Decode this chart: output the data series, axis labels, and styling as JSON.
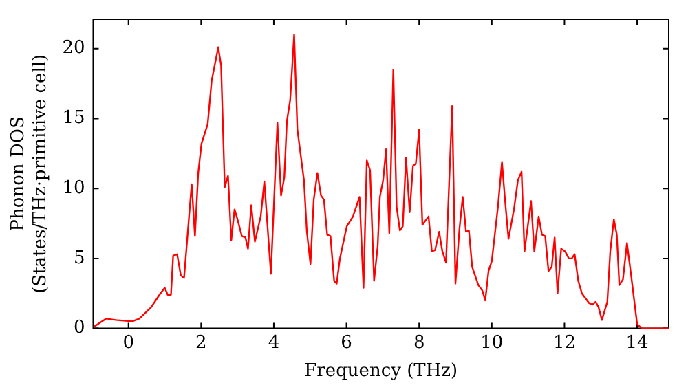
{
  "chart_data": {
    "type": "line",
    "xlabel": "Frequency (THz)",
    "ylabel": "Phonon DOS\n(States/THz·primitive cell)",
    "x": [
      -0.96,
      -0.61,
      -0.35,
      0.1,
      0.3,
      0.62,
      0.88,
      1.0,
      1.08,
      1.17,
      1.23,
      1.34,
      1.44,
      1.53,
      1.74,
      1.83,
      1.92,
      2.01,
      2.18,
      2.29,
      2.47,
      2.55,
      2.65,
      2.74,
      2.83,
      2.92,
      3.0,
      3.12,
      3.22,
      3.29,
      3.38,
      3.48,
      3.64,
      3.74,
      3.92,
      4.1,
      4.2,
      4.29,
      4.36,
      4.45,
      4.56,
      4.65,
      4.83,
      4.91,
      5.01,
      5.1,
      5.2,
      5.3,
      5.38,
      5.47,
      5.56,
      5.66,
      5.73,
      5.82,
      6.01,
      6.18,
      6.36,
      6.47,
      6.56,
      6.65,
      6.76,
      6.86,
      6.92,
      7.01,
      7.09,
      7.18,
      7.29,
      7.38,
      7.47,
      7.55,
      7.64,
      7.74,
      7.83,
      7.91,
      8.0,
      8.09,
      8.26,
      8.35,
      8.44,
      8.55,
      8.64,
      8.74,
      8.91,
      9.0,
      9.11,
      9.2,
      9.29,
      9.37,
      9.46,
      9.63,
      9.74,
      9.82,
      9.91,
      10.0,
      10.17,
      10.28,
      10.37,
      10.46,
      10.61,
      10.72,
      10.82,
      10.9,
      10.99,
      11.08,
      11.17,
      11.29,
      11.38,
      11.47,
      11.56,
      11.65,
      11.73,
      11.81,
      11.91,
      12.02,
      12.12,
      12.2,
      12.28,
      12.38,
      12.48,
      12.68,
      12.77,
      12.86,
      12.94,
      13.03,
      13.18,
      13.26,
      13.36,
      13.44,
      13.51,
      13.61,
      13.72,
      13.83,
      14.0,
      14.13,
      14.87
    ],
    "series": [
      {
        "color": "#ff0000",
        "values": [
          0.1,
          0.7,
          0.6,
          0.5,
          0.7,
          1.5,
          2.5,
          2.9,
          2.4,
          2.4,
          5.2,
          5.3,
          3.8,
          3.6,
          10.3,
          6.6,
          11.1,
          13.2,
          14.6,
          17.7,
          20.1,
          18.8,
          10.1,
          10.9,
          6.3,
          8.5,
          7.8,
          6.6,
          6.5,
          5.7,
          8.8,
          6.2,
          8.0,
          10.5,
          3.9,
          14.7,
          9.5,
          10.8,
          14.8,
          16.3,
          21.0,
          14.2,
          10.6,
          6.9,
          4.6,
          9.2,
          11.1,
          9.5,
          9.2,
          6.7,
          6.6,
          3.4,
          3.2,
          5.0,
          7.3,
          8.0,
          9.4,
          2.9,
          12.0,
          11.3,
          3.4,
          5.9,
          9.4,
          10.6,
          12.8,
          6.8,
          18.5,
          8.7,
          7.0,
          7.3,
          12.2,
          8.3,
          11.6,
          11.8,
          14.2,
          7.4,
          8.0,
          5.5,
          5.6,
          6.9,
          5.5,
          4.7,
          15.9,
          3.2,
          7.1,
          9.4,
          6.9,
          7.0,
          4.4,
          3.1,
          2.7,
          2.0,
          4.1,
          4.8,
          8.7,
          11.9,
          9.0,
          6.4,
          8.5,
          10.6,
          11.2,
          5.5,
          7.3,
          9.1,
          5.5,
          8.0,
          6.7,
          6.6,
          4.1,
          4.4,
          6.5,
          2.5,
          5.7,
          5.5,
          5.0,
          5.0,
          5.3,
          3.4,
          2.5,
          1.8,
          1.7,
          1.9,
          1.5,
          0.6,
          1.9,
          5.5,
          7.8,
          6.7,
          3.1,
          3.5,
          6.1,
          3.9,
          0.3,
          0,
          0
        ]
      }
    ],
    "xlim": [
      -0.97,
      14.87
    ],
    "ylim": [
      0,
      22.1
    ],
    "xticks": [
      0,
      2,
      4,
      6,
      8,
      10,
      12,
      14
    ],
    "yticks": [
      0,
      5,
      10,
      15,
      20
    ],
    "grid": false,
    "legend": false,
    "marker": "none",
    "line_style": "solid"
  }
}
